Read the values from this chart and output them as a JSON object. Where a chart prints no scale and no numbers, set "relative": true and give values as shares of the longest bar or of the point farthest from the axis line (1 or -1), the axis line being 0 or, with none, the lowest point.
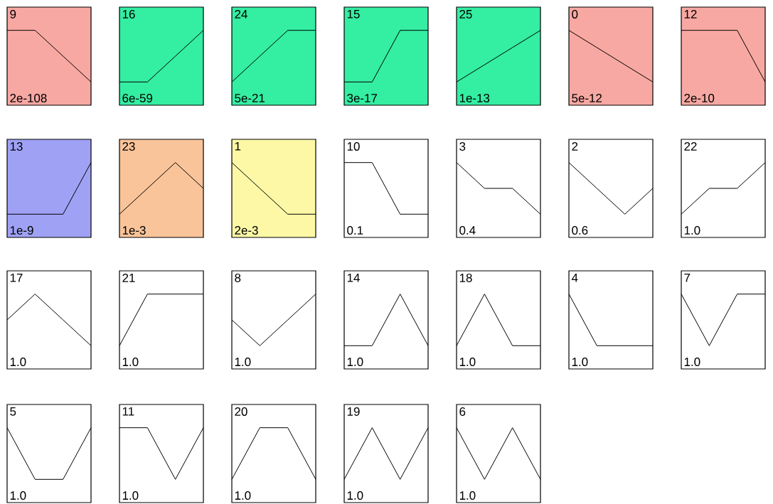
{
  "chart_data": [
    {
      "type": "line",
      "title": "9",
      "annotations": [
        "2e-108"
      ],
      "categories": [
        null,
        null,
        null,
        null
      ],
      "values": [
        1,
        1,
        0.5,
        0
      ],
      "relative": true,
      "color": "#000000",
      "bands": [
        {
          "axis": "y",
          "from": -0.45,
          "to": 1.45,
          "color": "#f8a8a2"
        }
      ]
    },
    {
      "type": "line",
      "title": "16",
      "annotations": [
        "6e-59"
      ],
      "categories": [
        null,
        null,
        null,
        null
      ],
      "values": [
        0,
        0,
        0.5,
        1
      ],
      "relative": true,
      "color": "#000000",
      "bands": [
        {
          "axis": "y",
          "from": -0.45,
          "to": 1.45,
          "color": "#34eea2"
        }
      ]
    },
    {
      "type": "line",
      "title": "24",
      "annotations": [
        "5e-21"
      ],
      "categories": [
        null,
        null,
        null,
        null
      ],
      "values": [
        0,
        0.5,
        1,
        1
      ],
      "relative": true,
      "color": "#000000",
      "bands": [
        {
          "axis": "y",
          "from": -0.45,
          "to": 1.45,
          "color": "#34eea2"
        }
      ]
    },
    {
      "type": "line",
      "title": "15",
      "annotations": [
        "3e-17"
      ],
      "categories": [
        null,
        null,
        null,
        null
      ],
      "values": [
        0,
        0,
        1,
        1
      ],
      "relative": true,
      "color": "#000000",
      "bands": [
        {
          "axis": "y",
          "from": -0.45,
          "to": 1.45,
          "color": "#34eea2"
        }
      ]
    },
    {
      "type": "line",
      "title": "25",
      "annotations": [
        "1e-13"
      ],
      "categories": [
        null,
        null,
        null,
        null
      ],
      "values": [
        0,
        0.333,
        0.667,
        1
      ],
      "relative": true,
      "color": "#000000",
      "bands": [
        {
          "axis": "y",
          "from": -0.45,
          "to": 1.45,
          "color": "#34eea2"
        }
      ]
    },
    {
      "type": "line",
      "title": "0",
      "annotations": [
        "5e-12"
      ],
      "categories": [
        null,
        null,
        null,
        null
      ],
      "values": [
        1,
        0.667,
        0.333,
        0
      ],
      "relative": true,
      "color": "#000000",
      "bands": [
        {
          "axis": "y",
          "from": -0.45,
          "to": 1.45,
          "color": "#f8a8a2"
        }
      ]
    },
    {
      "type": "line",
      "title": "12",
      "annotations": [
        "2e-10"
      ],
      "categories": [
        null,
        null,
        null,
        null
      ],
      "values": [
        1,
        1,
        1,
        0
      ],
      "relative": true,
      "color": "#000000",
      "bands": [
        {
          "axis": "y",
          "from": -0.45,
          "to": 1.45,
          "color": "#f8a8a2"
        }
      ]
    },
    {
      "type": "line",
      "title": "13",
      "annotations": [
        "1e-9"
      ],
      "categories": [
        null,
        null,
        null,
        null
      ],
      "values": [
        0,
        0,
        0,
        1
      ],
      "relative": true,
      "color": "#000000",
      "bands": [
        {
          "axis": "y",
          "from": -0.45,
          "to": 1.45,
          "color": "#9fa2f4"
        }
      ]
    },
    {
      "type": "line",
      "title": "23",
      "annotations": [
        "1e-3"
      ],
      "categories": [
        null,
        null,
        null,
        null
      ],
      "values": [
        0,
        0.5,
        1,
        0.5
      ],
      "relative": true,
      "color": "#000000",
      "bands": [
        {
          "axis": "y",
          "from": -0.45,
          "to": 1.45,
          "color": "#f9c49a"
        }
      ]
    },
    {
      "type": "line",
      "title": "1",
      "annotations": [
        "2e-3"
      ],
      "categories": [
        null,
        null,
        null,
        null
      ],
      "values": [
        1,
        0.5,
        0,
        0
      ],
      "relative": true,
      "color": "#000000",
      "bands": [
        {
          "axis": "y",
          "from": -0.45,
          "to": 1.45,
          "color": "#fcf8a6"
        }
      ]
    },
    {
      "type": "line",
      "title": "10",
      "annotations": [
        "0.1"
      ],
      "categories": [
        null,
        null,
        null,
        null
      ],
      "values": [
        1,
        1,
        0,
        0
      ],
      "relative": true,
      "color": "#000000"
    },
    {
      "type": "line",
      "title": "3",
      "annotations": [
        "0.4"
      ],
      "categories": [
        null,
        null,
        null,
        null
      ],
      "values": [
        1,
        0.5,
        0.5,
        0
      ],
      "relative": true,
      "color": "#000000"
    },
    {
      "type": "line",
      "title": "2",
      "annotations": [
        "0.6"
      ],
      "categories": [
        null,
        null,
        null,
        null
      ],
      "values": [
        1,
        0.5,
        0,
        0.5
      ],
      "relative": true,
      "color": "#000000"
    },
    {
      "type": "line",
      "title": "22",
      "annotations": [
        "1.0"
      ],
      "categories": [
        null,
        null,
        null,
        null
      ],
      "values": [
        0,
        0.5,
        0.5,
        1
      ],
      "relative": true,
      "color": "#000000"
    },
    {
      "type": "line",
      "title": "17",
      "annotations": [
        "1.0"
      ],
      "categories": [
        null,
        null,
        null,
        null
      ],
      "values": [
        0.5,
        1,
        0.5,
        0
      ],
      "relative": true,
      "color": "#000000"
    },
    {
      "type": "line",
      "title": "21",
      "annotations": [
        "1.0"
      ],
      "categories": [
        null,
        null,
        null,
        null
      ],
      "values": [
        0,
        1,
        1,
        1
      ],
      "relative": true,
      "color": "#000000"
    },
    {
      "type": "line",
      "title": "8",
      "annotations": [
        "1.0"
      ],
      "categories": [
        null,
        null,
        null,
        null
      ],
      "values": [
        0.5,
        0,
        0.5,
        1
      ],
      "relative": true,
      "color": "#000000"
    },
    {
      "type": "line",
      "title": "14",
      "annotations": [
        "1.0"
      ],
      "categories": [
        null,
        null,
        null,
        null
      ],
      "values": [
        0,
        0,
        1,
        0
      ],
      "relative": true,
      "color": "#000000"
    },
    {
      "type": "line",
      "title": "18",
      "annotations": [
        "1.0"
      ],
      "categories": [
        null,
        null,
        null,
        null
      ],
      "values": [
        0,
        1,
        0,
        0
      ],
      "relative": true,
      "color": "#000000"
    },
    {
      "type": "line",
      "title": "4",
      "annotations": [
        "1.0"
      ],
      "categories": [
        null,
        null,
        null,
        null
      ],
      "values": [
        1,
        0,
        0,
        0
      ],
      "relative": true,
      "color": "#000000"
    },
    {
      "type": "line",
      "title": "7",
      "annotations": [
        "1.0"
      ],
      "categories": [
        null,
        null,
        null,
        null
      ],
      "values": [
        1,
        0,
        1,
        1
      ],
      "relative": true,
      "color": "#000000"
    },
    {
      "type": "line",
      "title": "5",
      "annotations": [
        "1.0"
      ],
      "categories": [
        null,
        null,
        null,
        null
      ],
      "values": [
        1,
        0,
        0,
        1
      ],
      "relative": true,
      "color": "#000000"
    },
    {
      "type": "line",
      "title": "11",
      "annotations": [
        "1.0"
      ],
      "categories": [
        null,
        null,
        null,
        null
      ],
      "values": [
        1,
        1,
        0,
        1
      ],
      "relative": true,
      "color": "#000000"
    },
    {
      "type": "line",
      "title": "20",
      "annotations": [
        "1.0"
      ],
      "categories": [
        null,
        null,
        null,
        null
      ],
      "values": [
        0,
        1,
        1,
        0
      ],
      "relative": true,
      "color": "#000000"
    },
    {
      "type": "line",
      "title": "19",
      "annotations": [
        "1.0"
      ],
      "categories": [
        null,
        null,
        null,
        null
      ],
      "values": [
        0,
        1,
        0,
        1
      ],
      "relative": true,
      "color": "#000000"
    },
    {
      "type": "line",
      "title": "6",
      "annotations": [
        "1.0"
      ],
      "categories": [
        null,
        null,
        null,
        null
      ],
      "values": [
        1,
        0,
        1,
        0
      ],
      "relative": true,
      "color": "#000000"
    }
  ]
}
